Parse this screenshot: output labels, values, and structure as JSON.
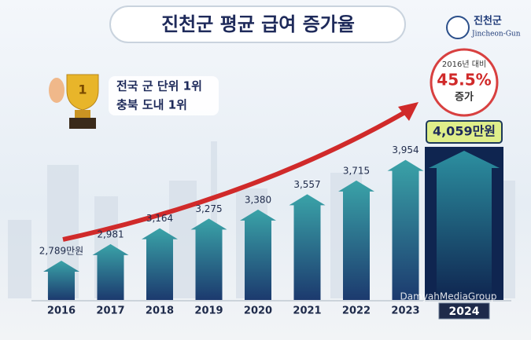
{
  "header": {
    "title": "진천군 평균 급여 증가율",
    "logo_name": "진천군",
    "logo_sub": "Jincheon-Gun"
  },
  "badge": [
    "전국 군 단위 1위",
    "충북 도내 1위"
  ],
  "callout": {
    "line1": "2016년 대비",
    "value": "45.5%",
    "line2": "증가"
  },
  "watermark": "DamyahMediaGroup",
  "chart_data": {
    "type": "bar",
    "categories": [
      "2016",
      "2017",
      "2018",
      "2019",
      "2020",
      "2021",
      "2022",
      "2023",
      "2024"
    ],
    "values": [
      2789,
      2981,
      3164,
      3275,
      3380,
      3557,
      3715,
      3954,
      4059
    ],
    "value_labels": [
      "2,789만원",
      "2,981",
      "3,164",
      "3,275",
      "3,380",
      "3,557",
      "3,715",
      "3,954",
      "4,059만원"
    ]
  }
}
